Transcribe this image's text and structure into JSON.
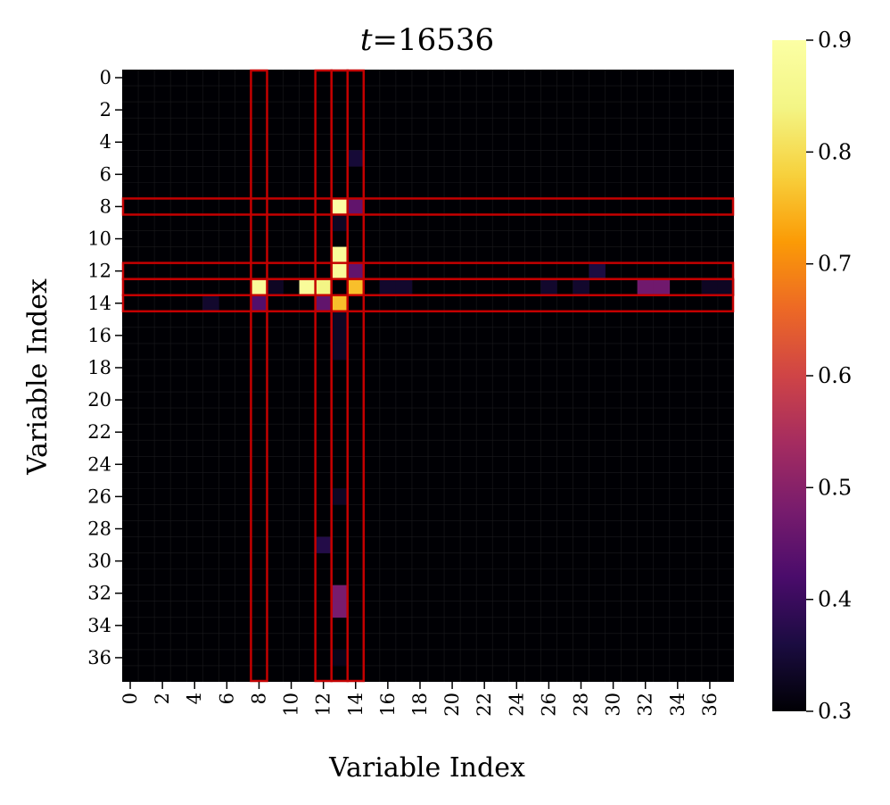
{
  "chart_data": {
    "type": "heatmap",
    "title_prefix": "t",
    "title_value": "=16536",
    "xlabel": "Variable Index",
    "ylabel": "Variable Index",
    "n": 38,
    "x_ticks": [
      "0",
      "2",
      "4",
      "6",
      "8",
      "10",
      "12",
      "14",
      "16",
      "18",
      "20",
      "22",
      "24",
      "26",
      "28",
      "30",
      "32",
      "34",
      "36"
    ],
    "y_ticks": [
      "0",
      "2",
      "4",
      "6",
      "8",
      "10",
      "12",
      "14",
      "16",
      "18",
      "20",
      "22",
      "24",
      "26",
      "28",
      "30",
      "32",
      "34",
      "36"
    ],
    "colormap": "inferno",
    "vmin": 0.3,
    "vmax": 0.9,
    "colorbar_ticks": [
      "0.3",
      "0.4",
      "0.5",
      "0.6",
      "0.7",
      "0.8",
      "0.9"
    ],
    "baseline_value": 0.3,
    "cells": [
      {
        "row": 5,
        "col": 14,
        "value": 0.35
      },
      {
        "row": 8,
        "col": 13,
        "value": 0.9
      },
      {
        "row": 8,
        "col": 14,
        "value": 0.45
      },
      {
        "row": 9,
        "col": 13,
        "value": 0.33
      },
      {
        "row": 11,
        "col": 13,
        "value": 0.88
      },
      {
        "row": 12,
        "col": 13,
        "value": 0.88
      },
      {
        "row": 12,
        "col": 14,
        "value": 0.45
      },
      {
        "row": 12,
        "col": 29,
        "value": 0.36
      },
      {
        "row": 13,
        "col": 8,
        "value": 0.88
      },
      {
        "row": 13,
        "col": 9,
        "value": 0.33
      },
      {
        "row": 13,
        "col": 11,
        "value": 0.88
      },
      {
        "row": 13,
        "col": 12,
        "value": 0.84
      },
      {
        "row": 13,
        "col": 14,
        "value": 0.76
      },
      {
        "row": 13,
        "col": 16,
        "value": 0.34
      },
      {
        "row": 13,
        "col": 17,
        "value": 0.34
      },
      {
        "row": 13,
        "col": 26,
        "value": 0.34
      },
      {
        "row": 13,
        "col": 28,
        "value": 0.34
      },
      {
        "row": 13,
        "col": 32,
        "value": 0.47
      },
      {
        "row": 13,
        "col": 33,
        "value": 0.47
      },
      {
        "row": 13,
        "col": 36,
        "value": 0.33
      },
      {
        "row": 13,
        "col": 37,
        "value": 0.33
      },
      {
        "row": 14,
        "col": 5,
        "value": 0.34
      },
      {
        "row": 14,
        "col": 8,
        "value": 0.43
      },
      {
        "row": 14,
        "col": 12,
        "value": 0.45
      },
      {
        "row": 14,
        "col": 13,
        "value": 0.76
      },
      {
        "row": 15,
        "col": 13,
        "value": 0.33
      },
      {
        "row": 16,
        "col": 13,
        "value": 0.33
      },
      {
        "row": 17,
        "col": 13,
        "value": 0.33
      },
      {
        "row": 26,
        "col": 13,
        "value": 0.33
      },
      {
        "row": 29,
        "col": 12,
        "value": 0.37
      },
      {
        "row": 32,
        "col": 13,
        "value": 0.48
      },
      {
        "row": 33,
        "col": 13,
        "value": 0.48
      },
      {
        "row": 36,
        "col": 13,
        "value": 0.32
      }
    ],
    "highlight_rows": [
      8,
      12,
      13,
      14
    ],
    "highlight_cols": [
      8,
      12,
      13,
      14
    ],
    "highlight_color": "#c40000"
  }
}
